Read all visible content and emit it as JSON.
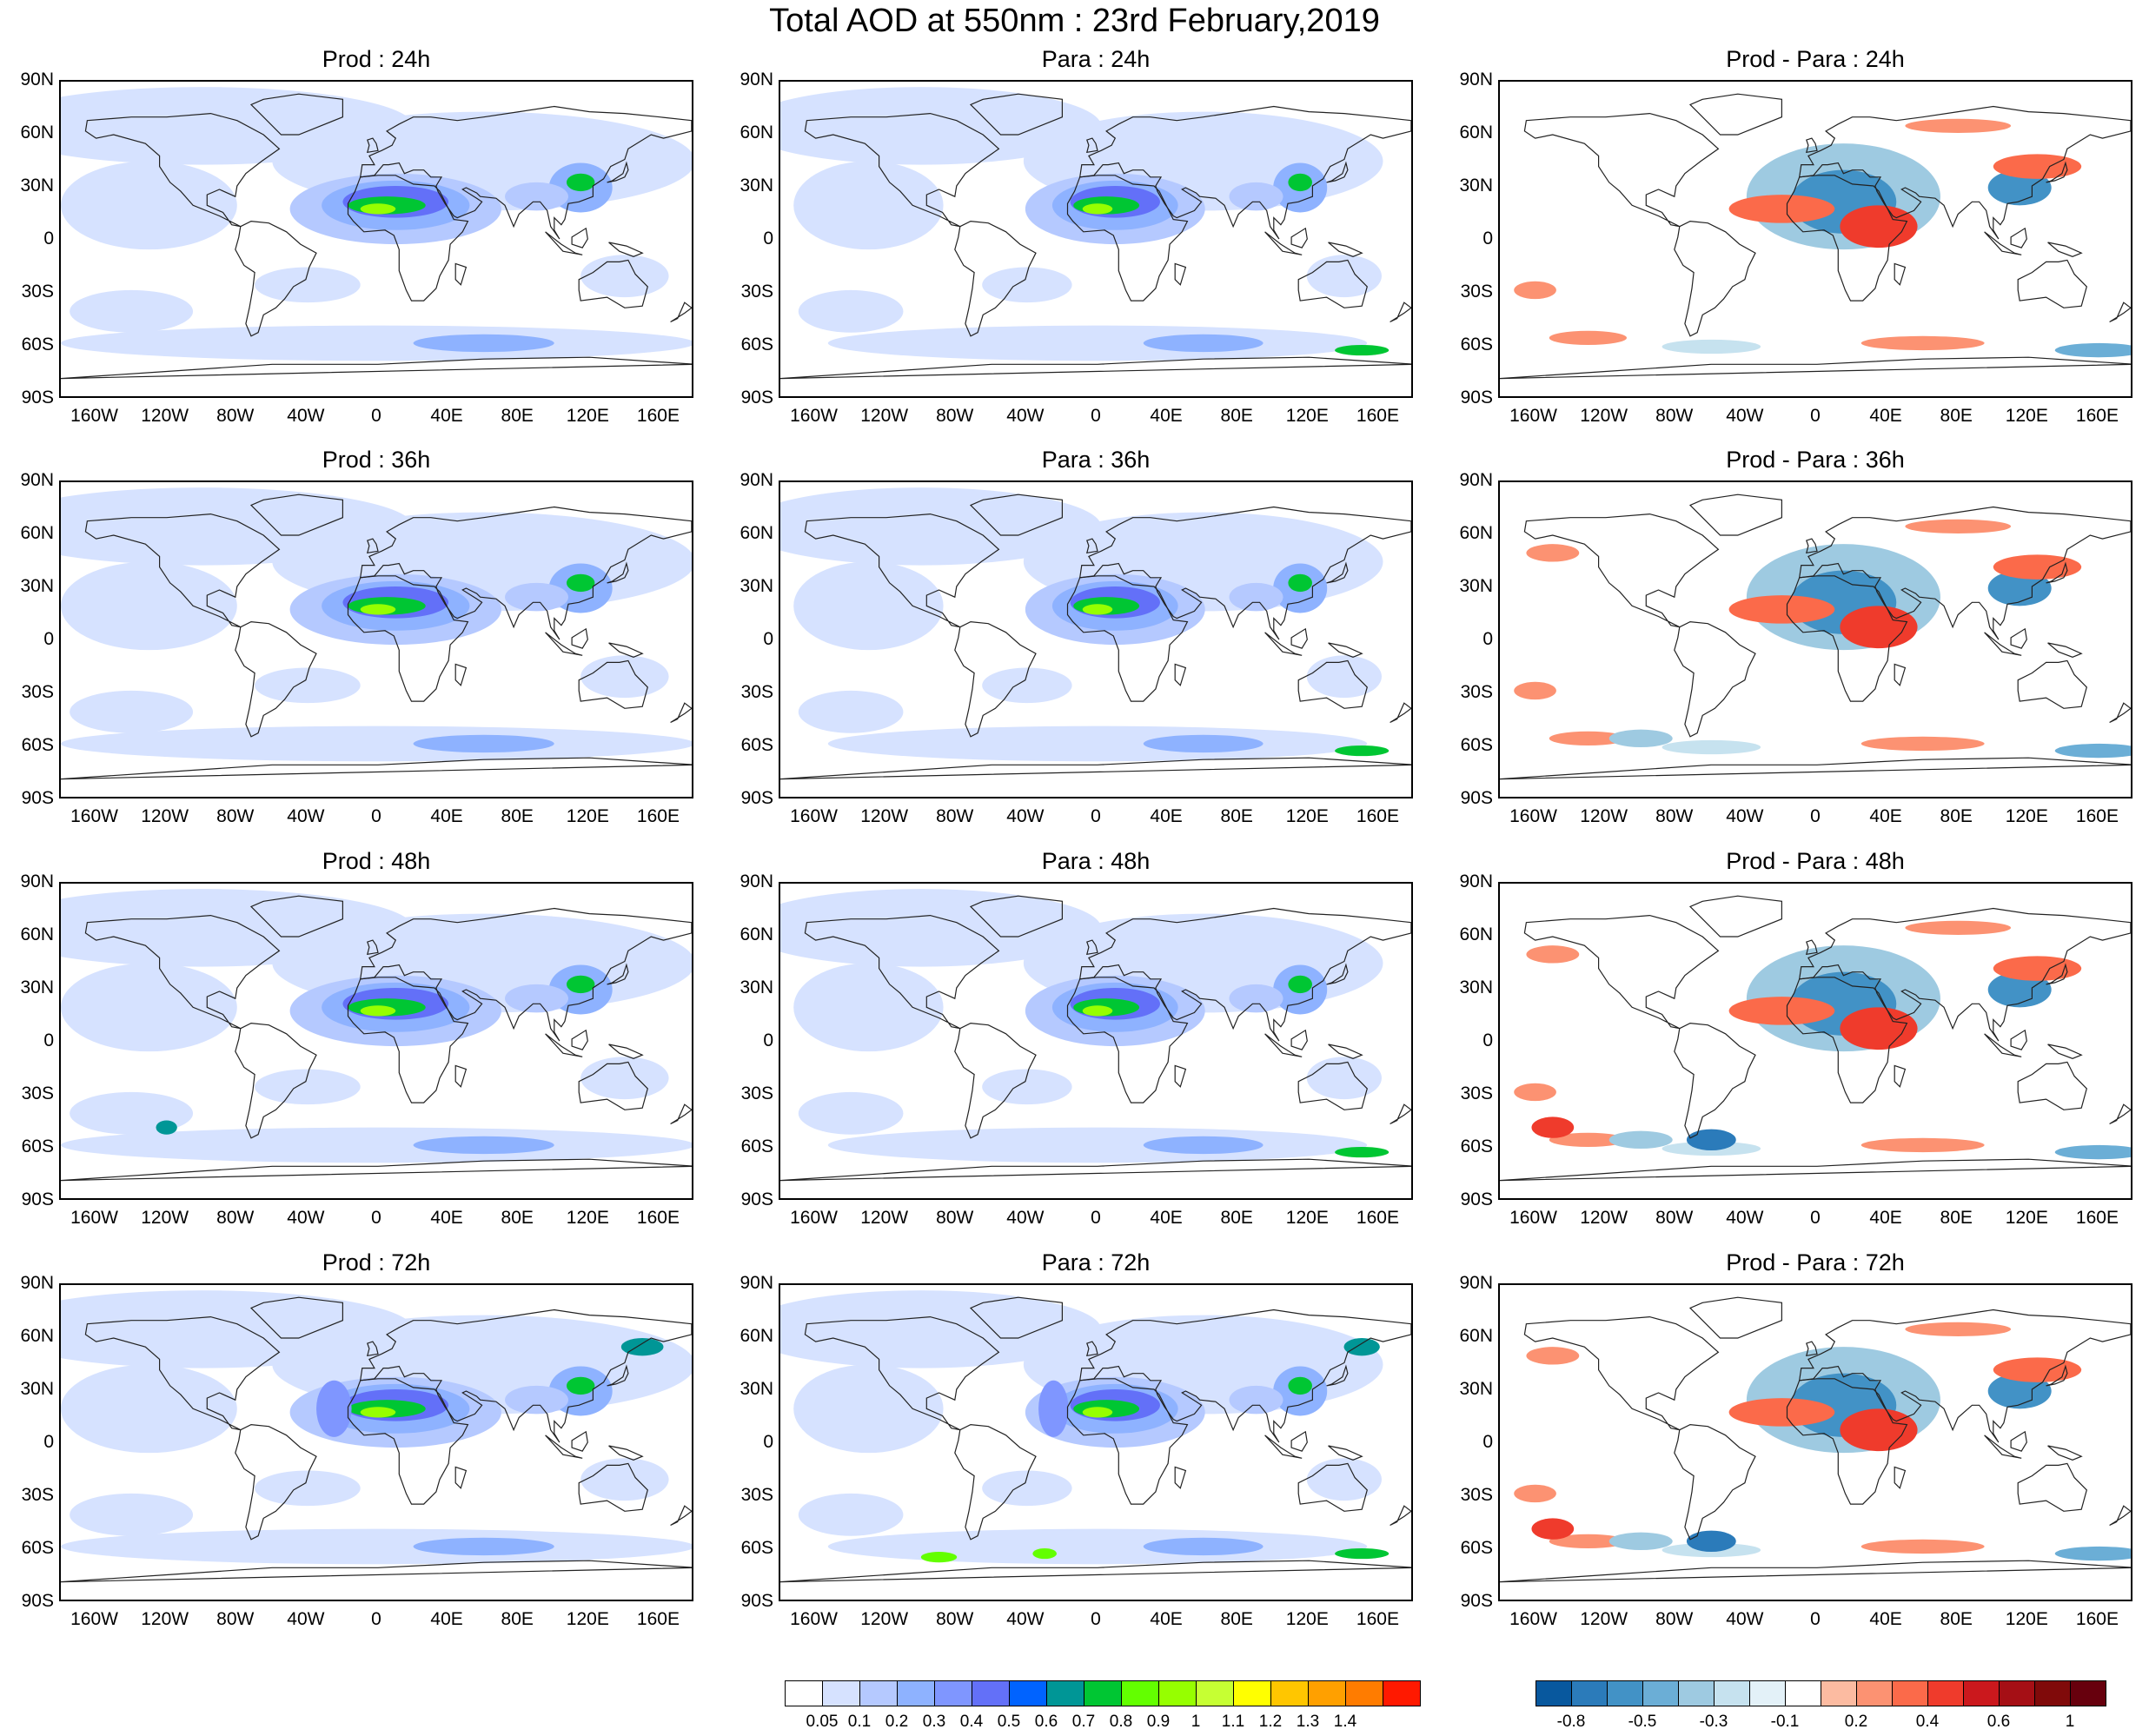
{
  "title": "Total AOD at 550nm : 23rd February,2019",
  "rows": [
    {
      "lead": "24h",
      "panels": [
        {
          "kind": "prod",
          "title": "Prod : 24h"
        },
        {
          "kind": "para",
          "title": "Para : 24h"
        },
        {
          "kind": "diff",
          "title": "Prod - Para : 24h"
        }
      ]
    },
    {
      "lead": "36h",
      "panels": [
        {
          "kind": "prod",
          "title": "Prod : 36h"
        },
        {
          "kind": "para",
          "title": "Para : 36h"
        },
        {
          "kind": "diff",
          "title": "Prod - Para : 36h"
        }
      ]
    },
    {
      "lead": "48h",
      "panels": [
        {
          "kind": "prod",
          "title": "Prod : 48h"
        },
        {
          "kind": "para",
          "title": "Para : 48h"
        },
        {
          "kind": "diff",
          "title": "Prod - Para : 48h"
        }
      ]
    },
    {
      "lead": "72h",
      "panels": [
        {
          "kind": "prod",
          "title": "Prod : 72h"
        },
        {
          "kind": "para",
          "title": "Para : 72h"
        },
        {
          "kind": "diff",
          "title": "Prod - Para : 72h"
        }
      ]
    }
  ],
  "lat_ticks": [
    "90N",
    "60N",
    "30N",
    "0",
    "30S",
    "60S",
    "90S"
  ],
  "lon_ticks": [
    "160W",
    "120W",
    "80W",
    "40W",
    "0",
    "40E",
    "80E",
    "120E",
    "160E"
  ],
  "lon_tick_values": [
    -160,
    -120,
    -80,
    -40,
    0,
    40,
    80,
    120,
    160
  ],
  "aod_colorbar": {
    "colors": [
      "#ffffff",
      "#d6e2ff",
      "#b5c9ff",
      "#8eb2ff",
      "#7f96ff",
      "#6370f8",
      "#0063ff",
      "#009696",
      "#00c633",
      "#63ff00",
      "#96ff00",
      "#c6ff33",
      "#ffff00",
      "#ffc600",
      "#ffa000",
      "#ff7c00",
      "#ff1900"
    ],
    "labels": [
      "0.05",
      "0.1",
      "0.2",
      "0.3",
      "0.4",
      "0.5",
      "0.6",
      "0.7",
      "0.8",
      "0.9",
      "1",
      "1.1",
      "1.2",
      "1.3",
      "1.4"
    ]
  },
  "diff_colorbar": {
    "colors": [
      "#08589e",
      "#2b7bba",
      "#4292c6",
      "#6baed6",
      "#9ecae1",
      "#c6e2ef",
      "#e3f1f8",
      "#ffffff",
      "#fcbba1",
      "#fc9272",
      "#fb6a4a",
      "#ef3b2c",
      "#cb181d",
      "#a50f15",
      "#800a0a",
      "#67000d"
    ],
    "labels": [
      "-0.8",
      "",
      "-0.5",
      "",
      "-0.3",
      "",
      "-0.1",
      "",
      "0.2",
      "",
      "0.4",
      "",
      "0.6",
      "",
      "1"
    ]
  }
}
